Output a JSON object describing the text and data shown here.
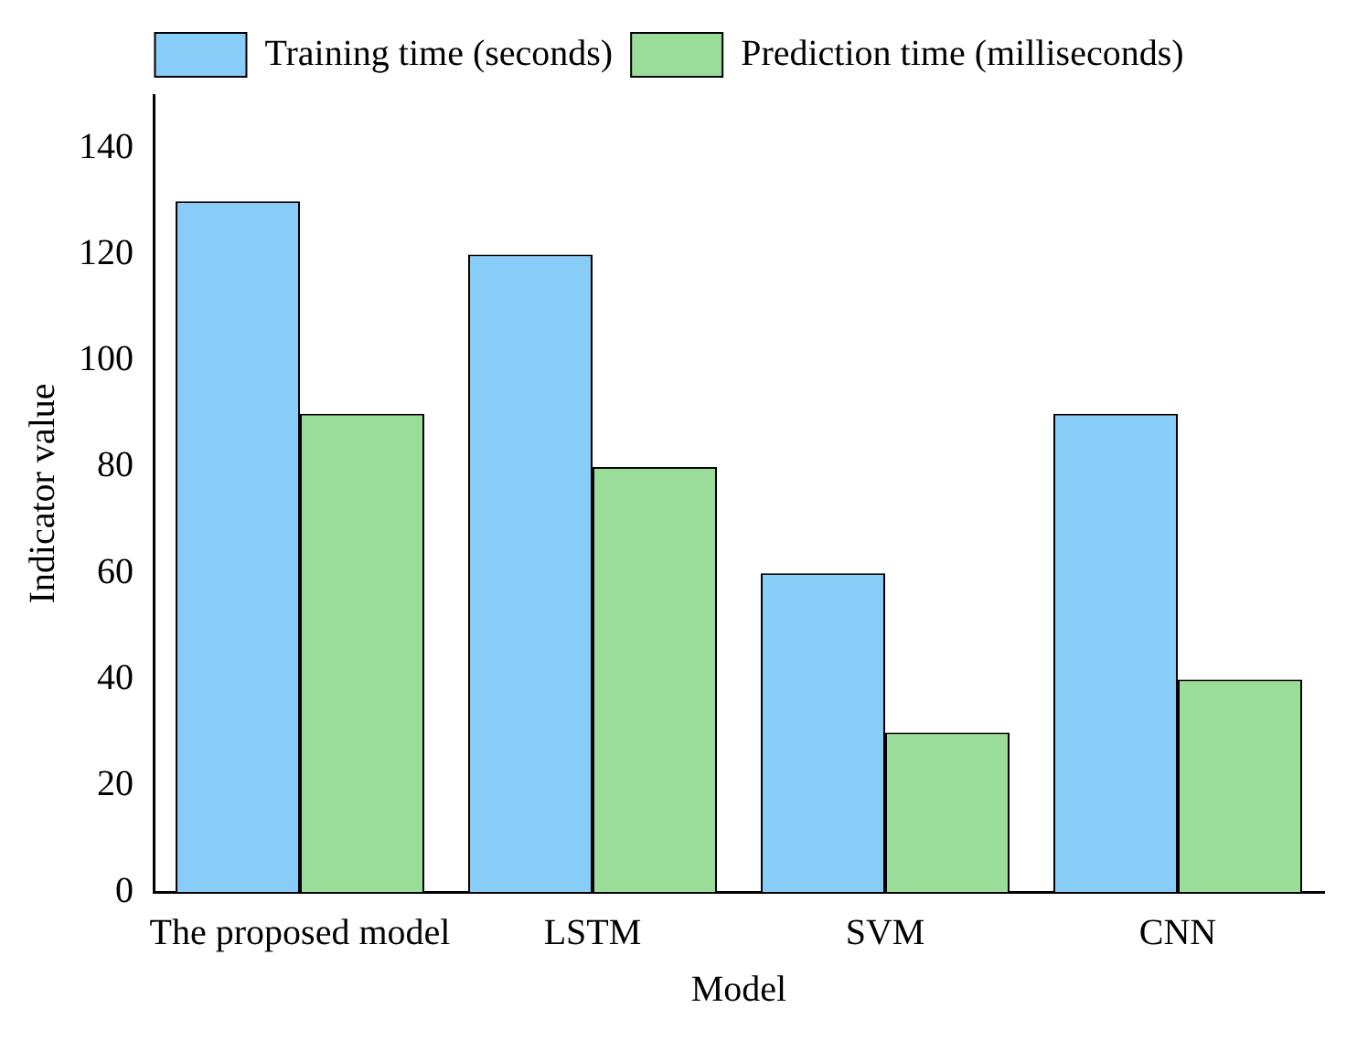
{
  "chart_data": {
    "type": "bar",
    "xlabel": "Model",
    "ylabel": "Indicator value",
    "categories": [
      "The proposed model",
      "LSTM",
      "SVM",
      "CNN"
    ],
    "series": [
      {
        "name": "Training time (seconds)",
        "color": "#88ccf8",
        "values": [
          130,
          120,
          60,
          90
        ]
      },
      {
        "name": "Prediction time (milliseconds)",
        "color": "#99dd99",
        "values": [
          90,
          80,
          30,
          40
        ]
      }
    ],
    "ylim": [
      0,
      150
    ],
    "yticks": [
      0,
      20,
      40,
      60,
      80,
      100,
      120,
      140
    ],
    "grid": false,
    "legend": "top"
  }
}
